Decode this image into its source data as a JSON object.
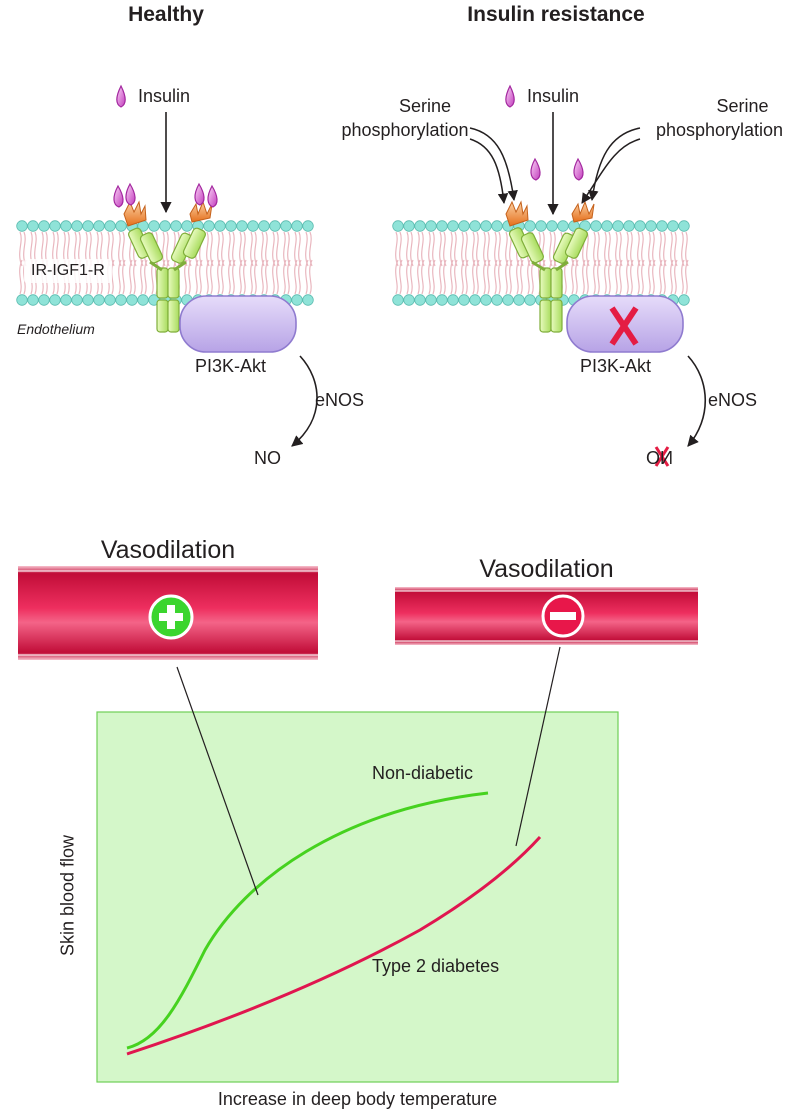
{
  "panels": {
    "healthy": {
      "title": "Healthy",
      "ligand_label": "Insulin",
      "receptor_label": "IR-IGF1-R",
      "membrane_label": "Endothelium",
      "kinase_label": "PI3K-Akt",
      "enzyme_label": "eNOS",
      "product_label": "NO"
    },
    "insulin_resistance": {
      "title": "Insulin resistance",
      "ligand_label": "Insulin",
      "left_modifier_label": [
        "Serine",
        "phosphorylation"
      ],
      "right_modifier_label": [
        "Serine",
        "phosphorylation"
      ],
      "kinase_label": "PI3K-Akt",
      "enzyme_label": "eNOS",
      "product_label": "NO"
    }
  },
  "vessels": {
    "left": {
      "label": "Vasodilation",
      "sign": "+",
      "sign_color": "#3bd52e"
    },
    "right": {
      "label": "Vasodilation",
      "sign": "−",
      "sign_color": "#e8174a"
    }
  },
  "graph": {
    "ylabel": "Skin blood flow",
    "xlabel": "Increase in deep body temperature",
    "curves": [
      {
        "name": "Non-diabetic",
        "color": "#46d21f"
      },
      {
        "name": "Type 2 diabetes",
        "color": "#e0164f"
      }
    ]
  },
  "colors": {
    "membrane_head": "#8fe3d8",
    "lipid_tail": "#e9b7bf",
    "kinase": "#c9b8ef",
    "receptor": "#cdef94",
    "insulin": "#e48ce0",
    "phospho": "#f08a3a",
    "vessel": "#d81140",
    "graph_bg": "#d4f7c9",
    "block_x": "#e41c43"
  }
}
